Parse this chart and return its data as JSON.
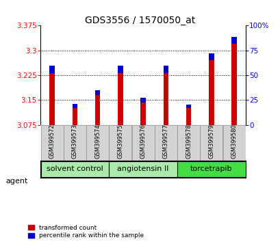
{
  "title": "GDS3556 / 1570050_at",
  "samples": [
    "GSM399572",
    "GSM399573",
    "GSM399574",
    "GSM399575",
    "GSM399576",
    "GSM399577",
    "GSM399578",
    "GSM399579",
    "GSM399580"
  ],
  "red_values": [
    3.232,
    3.127,
    3.165,
    3.232,
    3.142,
    3.232,
    3.127,
    3.27,
    3.32
  ],
  "blue_percentiles": [
    7,
    4,
    5,
    7,
    5,
    7,
    3,
    7,
    7
  ],
  "baseline": 3.075,
  "ylim_left": [
    3.075,
    3.375
  ],
  "ylim_right": [
    0,
    100
  ],
  "yticks_left": [
    3.075,
    3.15,
    3.225,
    3.3,
    3.375
  ],
  "yticks_right": [
    0,
    25,
    50,
    75,
    100
  ],
  "ytick_labels_left": [
    "3.075",
    "3.15",
    "3.225",
    "3.3",
    "3.375"
  ],
  "ytick_labels_right": [
    "0",
    "25",
    "50",
    "75",
    "100%"
  ],
  "gridlines": [
    3.15,
    3.225,
    3.3
  ],
  "red_color": "#cc0000",
  "blue_color": "#0000cc",
  "bar_width": 0.5,
  "bg_bar_color": "#d3d3d3",
  "group_configs": [
    {
      "label": "solvent control",
      "start": 0,
      "end": 2,
      "color": "#aaeaaa"
    },
    {
      "label": "angiotensin II",
      "start": 3,
      "end": 5,
      "color": "#aaeaaa"
    },
    {
      "label": "torcetrapib",
      "start": 6,
      "end": 8,
      "color": "#44dd44"
    }
  ],
  "agent_label": "agent",
  "legend_items": [
    {
      "label": "transformed count",
      "color": "#cc0000"
    },
    {
      "label": "percentile rank within the sample",
      "color": "#0000cc"
    }
  ],
  "title_fontsize": 10,
  "tick_fontsize": 7.5,
  "sample_fontsize": 6,
  "group_fontsize": 8,
  "legend_fontsize": 6.5
}
